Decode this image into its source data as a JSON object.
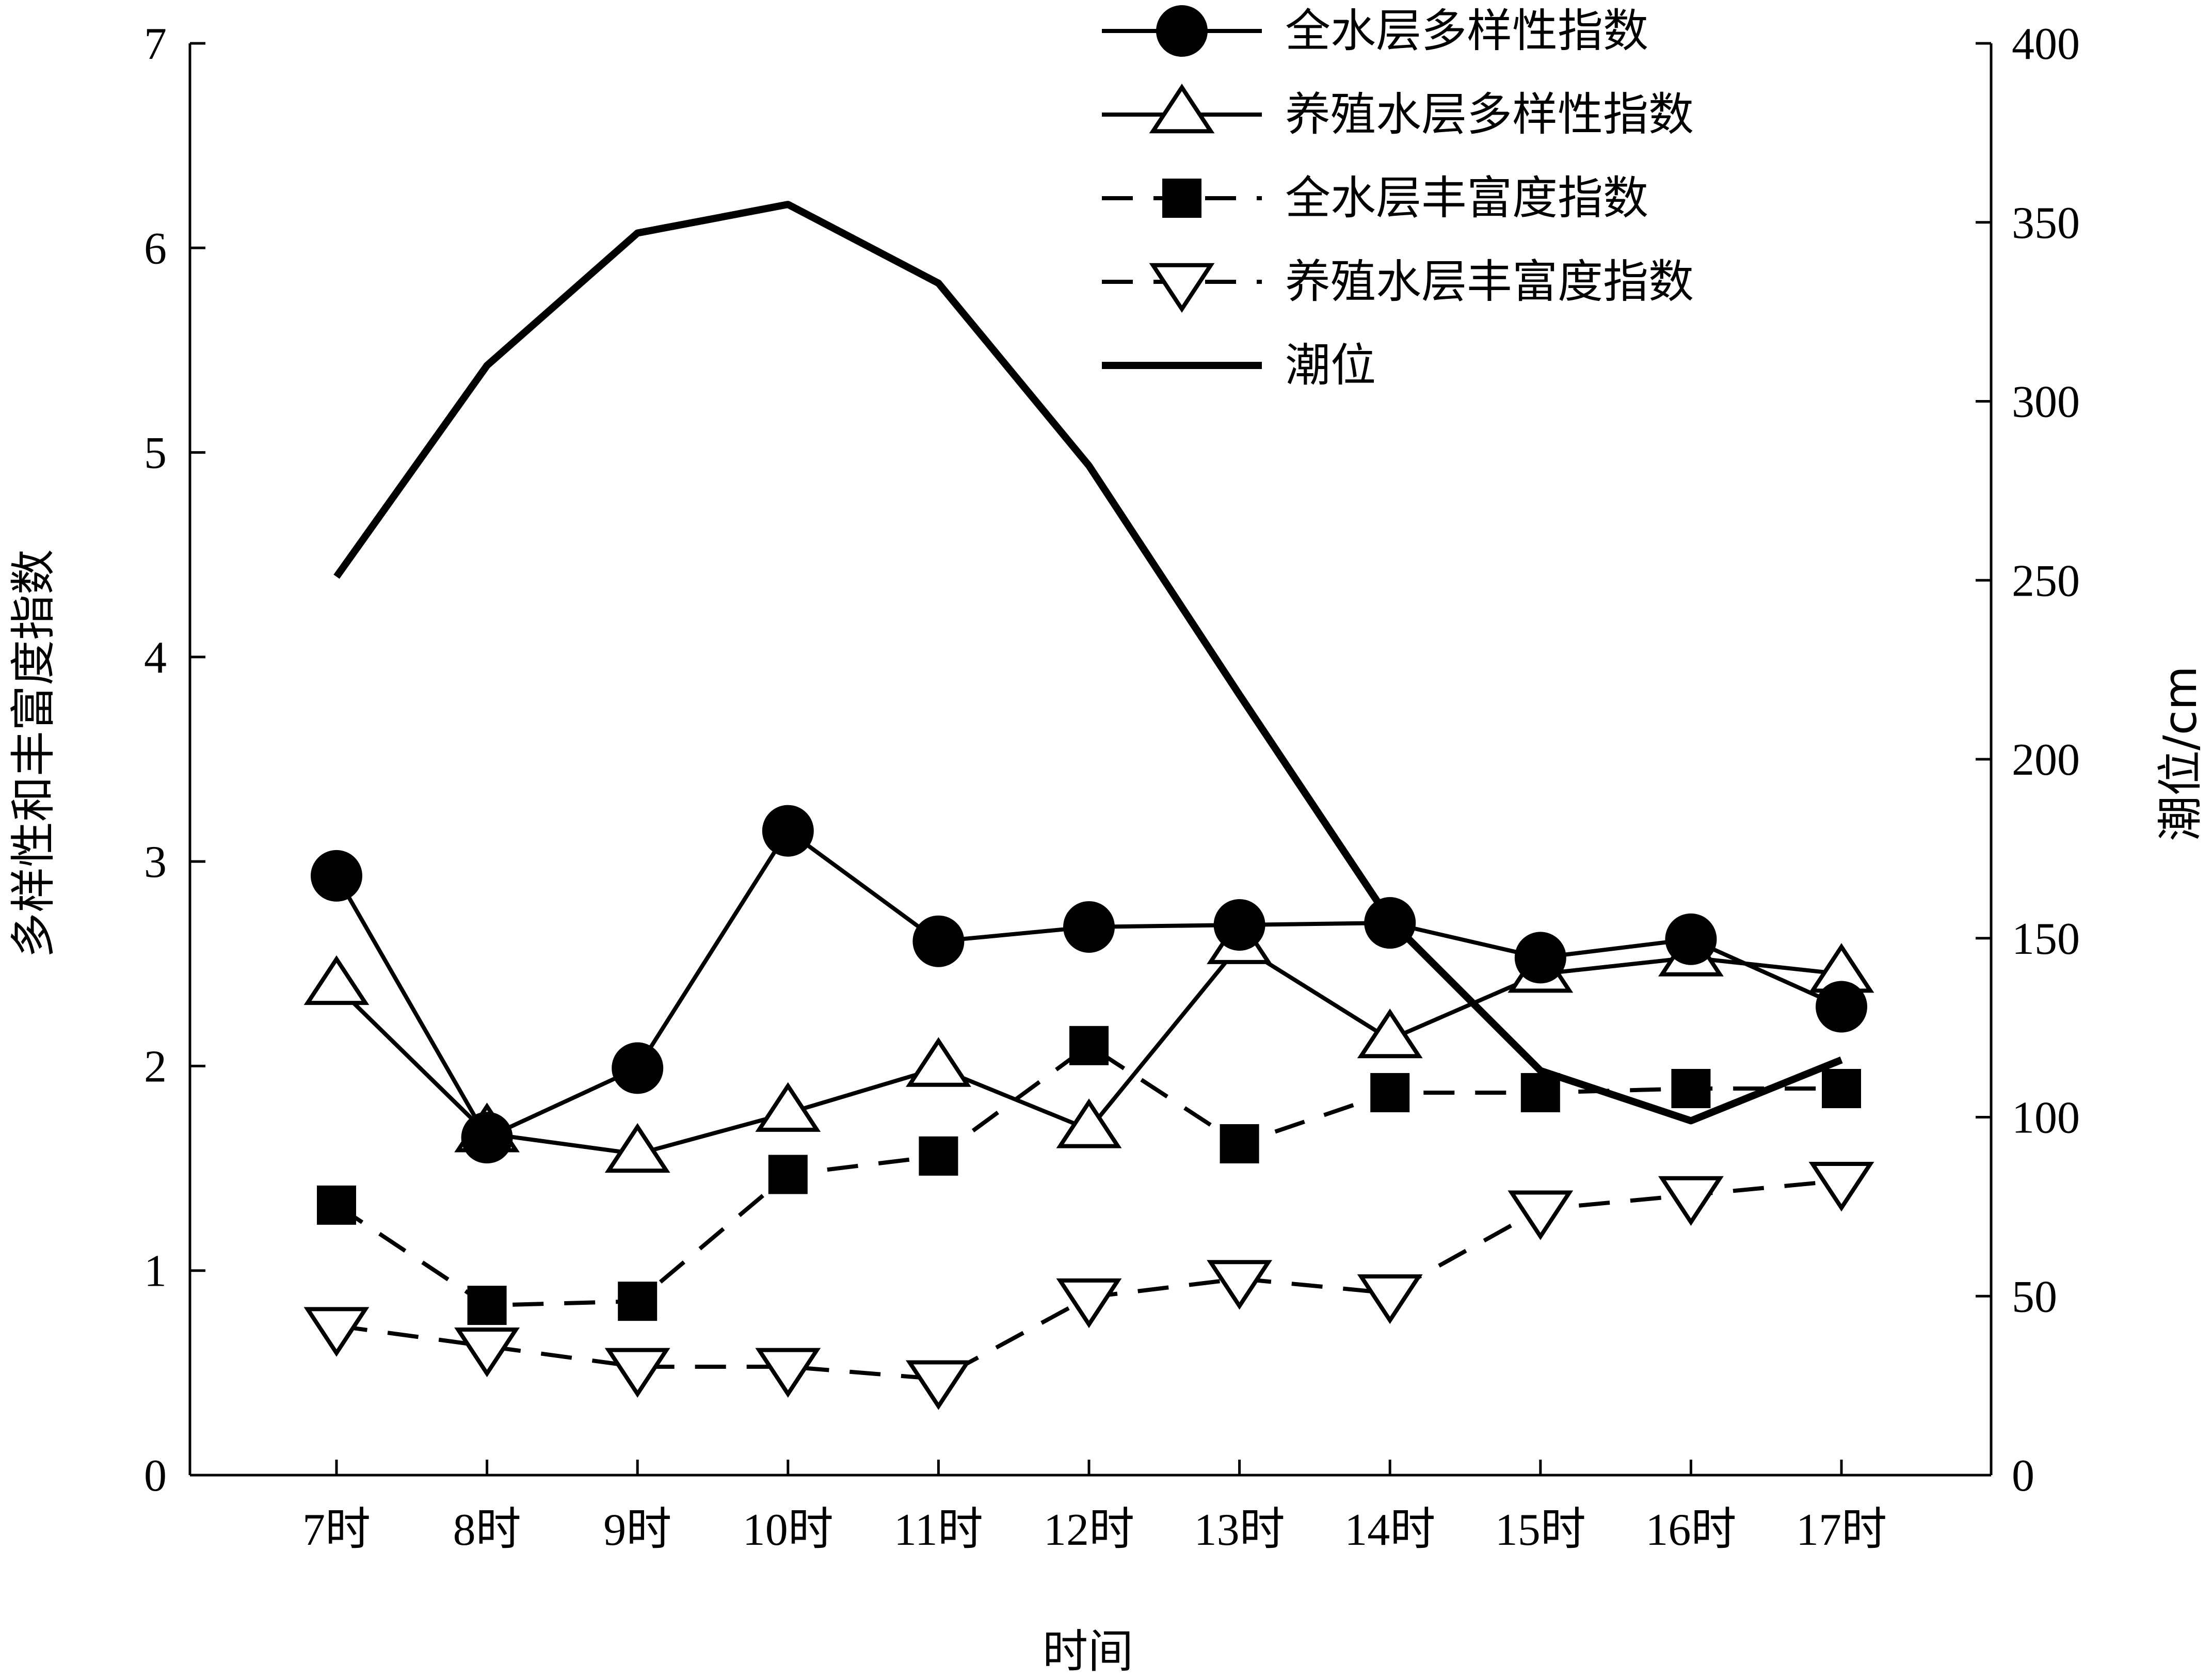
{
  "chart_data": {
    "type": "line",
    "xlabel": "时间",
    "ylabel_left": "多样性和丰富度指数",
    "ylabel_right": "潮位/cm",
    "categories": [
      "7时",
      "8时",
      "9时",
      "10时",
      "11时",
      "12时",
      "13时",
      "14时",
      "15时",
      "16时",
      "17时"
    ],
    "ylim_left": [
      0,
      7
    ],
    "yticks_left": [
      "0",
      "1",
      "2",
      "3",
      "4",
      "5",
      "6",
      "7"
    ],
    "ylim_right": [
      0,
      400
    ],
    "yticks_right": [
      "0",
      "50",
      "100",
      "150",
      "200",
      "250",
      "300",
      "350",
      "400"
    ],
    "grid": false,
    "legend_position": "top-right",
    "series": [
      {
        "name": "全水层多样性指数",
        "axis": "left",
        "marker": "circle",
        "dash": "solid",
        "values": [
          2.93,
          1.65,
          1.99,
          3.15,
          2.61,
          2.68,
          2.69,
          2.7,
          2.53,
          2.62,
          2.29
        ]
      },
      {
        "name": "养殖水层多样性指数",
        "axis": "left",
        "marker": "triangle-up",
        "dash": "solid",
        "values": [
          2.39,
          1.67,
          1.57,
          1.77,
          1.99,
          1.69,
          2.59,
          2.13,
          2.45,
          2.53,
          2.45
        ]
      },
      {
        "name": "全水层丰富度指数",
        "axis": "left",
        "marker": "square",
        "dash": "dashed",
        "values": [
          1.32,
          0.83,
          0.85,
          1.47,
          1.56,
          2.1,
          1.62,
          1.87,
          1.87,
          1.89,
          1.89
        ]
      },
      {
        "name": "养殖水层丰富度指数",
        "axis": "left",
        "marker": "triangle-down",
        "dash": "dashed",
        "values": [
          0.73,
          0.63,
          0.53,
          0.53,
          0.47,
          0.87,
          0.96,
          0.89,
          1.3,
          1.37,
          1.44
        ]
      },
      {
        "name": "潮位",
        "axis": "right",
        "marker": "none",
        "dash": "solid",
        "thick": true,
        "values": [
          251,
          310,
          347,
          355,
          333,
          282,
          218,
          155,
          113,
          99,
          116
        ]
      }
    ]
  }
}
